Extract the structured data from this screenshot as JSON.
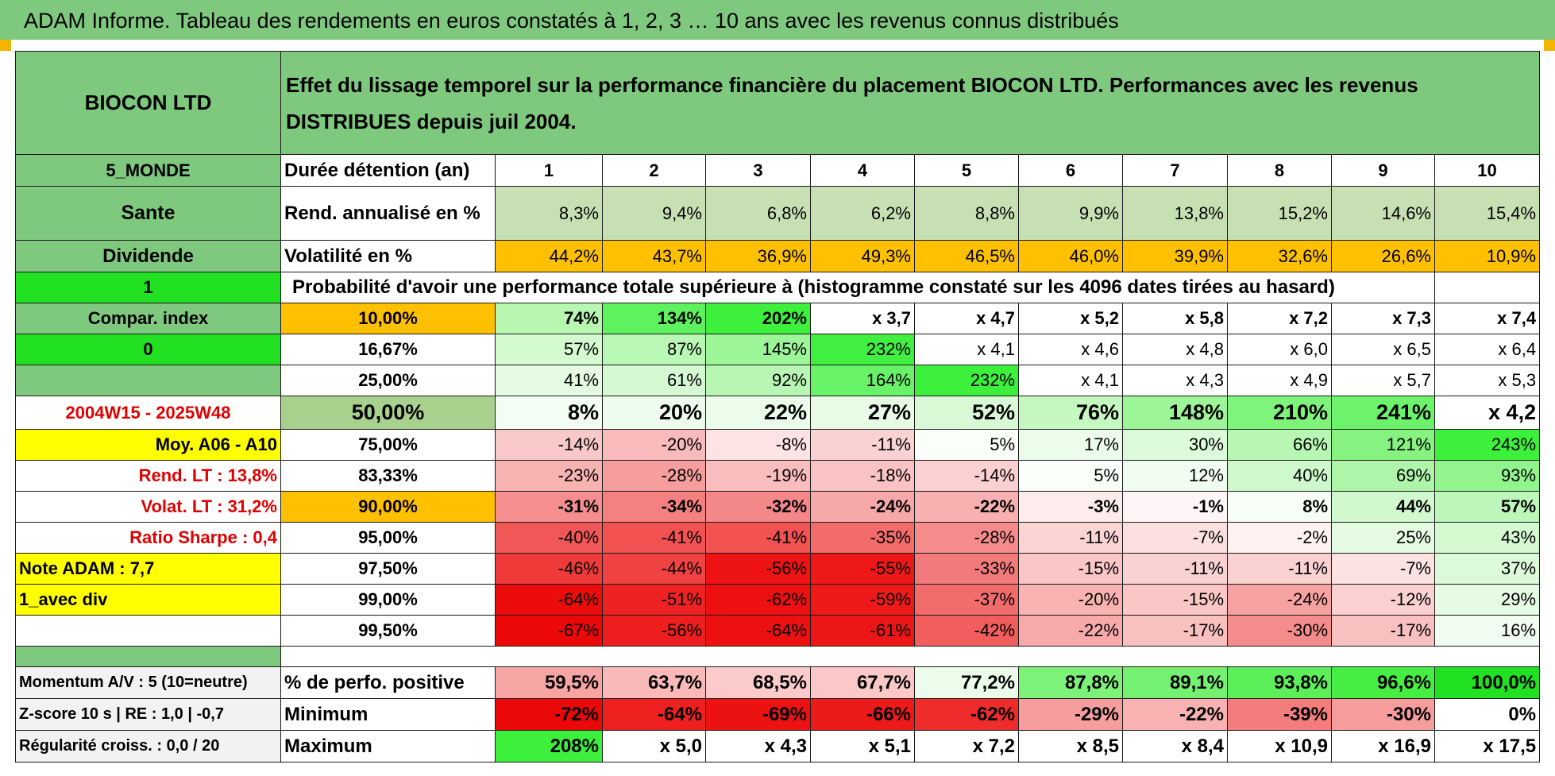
{
  "title": "ADAM Informe. Tableau des rendements en euros constatés à 1, 2, 3 … 10 ans avec les revenus connus distribués",
  "header": {
    "fund_name": "BIOCON LTD",
    "description": "Effet du lissage temporel sur la performance financière du placement BIOCON LTD. Performances avec les revenus DISTRIBUES depuis juil 2004."
  },
  "left_labels": {
    "region": "5_MONDE",
    "sector": "Sante",
    "income": "Dividende",
    "flag1": "1",
    "compar": "Compar. index",
    "flag2": "0",
    "empty": "",
    "period": "2004W15 - 2025W48",
    "moy": "Moy. A06 - A10",
    "rend_lt": "Rend. LT :    13,8%",
    "volat_lt": "Volat. LT :    31,2%",
    "sharpe": "Ratio Sharpe :     0,4",
    "note": "Note ADAM : 7,7",
    "avec_div": "1_avec div",
    "momentum": "Momentum A/V : 5 (10=neutre)",
    "zscore": "Z-score 10 s | RE : 1,0 | -0,7",
    "regularite": "Régularité croiss. : 0,0 / 20"
  },
  "rows": {
    "duree_label": "Durée détention (an)",
    "years": [
      "1",
      "2",
      "3",
      "4",
      "5",
      "6",
      "7",
      "8",
      "9",
      "10"
    ],
    "rend_label": "Rend. annualisé en %",
    "rend": [
      "8,3%",
      "9,4%",
      "6,8%",
      "6,2%",
      "8,8%",
      "9,9%",
      "13,8%",
      "15,2%",
      "14,6%",
      "15,4%"
    ],
    "vol_label": "Volatilité en %",
    "vol": [
      "44,2%",
      "43,7%",
      "36,9%",
      "49,3%",
      "46,5%",
      "46,0%",
      "39,9%",
      "32,6%",
      "26,6%",
      "10,9%"
    ],
    "prob_label": "Probabilité d'avoir une performance totale supérieure à (histogramme constaté sur les 4096 dates tirées au hasard)"
  },
  "prob_rows": [
    {
      "pct": "10,00%",
      "vals": [
        "74%",
        "134%",
        "202%",
        "x 3,7",
        "x 4,7",
        "x 5,2",
        "x 5,8",
        "x 7,2",
        "x 7,3",
        "x 7,4"
      ]
    },
    {
      "pct": "16,67%",
      "vals": [
        "57%",
        "87%",
        "145%",
        "232%",
        "x 4,1",
        "x 4,6",
        "x 4,8",
        "x 6,0",
        "x 6,5",
        "x 6,4"
      ]
    },
    {
      "pct": "25,00%",
      "vals": [
        "41%",
        "61%",
        "92%",
        "164%",
        "232%",
        "x 4,1",
        "x 4,3",
        "x 4,9",
        "x 5,7",
        "x 5,3"
      ]
    },
    {
      "pct": "50,00%",
      "vals": [
        "8%",
        "20%",
        "22%",
        "27%",
        "52%",
        "76%",
        "148%",
        "210%",
        "241%",
        "x 4,2"
      ]
    },
    {
      "pct": "75,00%",
      "vals": [
        "-14%",
        "-20%",
        "-8%",
        "-11%",
        "5%",
        "17%",
        "30%",
        "66%",
        "121%",
        "243%"
      ]
    },
    {
      "pct": "83,33%",
      "vals": [
        "-23%",
        "-28%",
        "-19%",
        "-18%",
        "-14%",
        "5%",
        "12%",
        "40%",
        "69%",
        "93%"
      ]
    },
    {
      "pct": "90,00%",
      "vals": [
        "-31%",
        "-34%",
        "-32%",
        "-24%",
        "-22%",
        "-3%",
        "-1%",
        "8%",
        "44%",
        "57%"
      ]
    },
    {
      "pct": "95,00%",
      "vals": [
        "-40%",
        "-41%",
        "-41%",
        "-35%",
        "-28%",
        "-11%",
        "-7%",
        "-2%",
        "25%",
        "43%"
      ]
    },
    {
      "pct": "97,50%",
      "vals": [
        "-46%",
        "-44%",
        "-56%",
        "-55%",
        "-33%",
        "-15%",
        "-11%",
        "-11%",
        "-7%",
        "37%"
      ]
    },
    {
      "pct": "99,00%",
      "vals": [
        "-64%",
        "-51%",
        "-62%",
        "-59%",
        "-37%",
        "-20%",
        "-15%",
        "-24%",
        "-12%",
        "29%"
      ]
    },
    {
      "pct": "99,50%",
      "vals": [
        "-67%",
        "-56%",
        "-64%",
        "-61%",
        "-42%",
        "-22%",
        "-17%",
        "-30%",
        "-17%",
        "16%"
      ]
    }
  ],
  "bottom": {
    "pos_label": "% de perfo. positive",
    "pos": [
      "59,5%",
      "63,7%",
      "68,5%",
      "67,7%",
      "77,2%",
      "87,8%",
      "89,1%",
      "93,8%",
      "96,6%",
      "100,0%"
    ],
    "min_label": "Minimum",
    "min": [
      "-72%",
      "-64%",
      "-69%",
      "-66%",
      "-62%",
      "-29%",
      "-22%",
      "-39%",
      "-30%",
      "0%"
    ],
    "max_label": "Maximum",
    "max": [
      "208%",
      "x 5,0",
      "x 4,3",
      "x 5,1",
      "x 7,2",
      "x 8,5",
      "x 8,4",
      "x 10,9",
      "x 16,9",
      "x 17,5"
    ]
  },
  "colors": {
    "header_green": "#7fc97f",
    "bright_green": "#22e022",
    "yellow": "#ffff00",
    "orange": "#ffc000",
    "light_green": "#c6e0b4",
    "label_red": "#e00000"
  },
  "cell_colors": {
    "prob": [
      [
        "#b7f7b0",
        "#5ef25e",
        "#3cf03c",
        "#ffffff",
        "#ffffff",
        "#ffffff",
        "#ffffff",
        "#ffffff",
        "#ffffff",
        "#ffffff"
      ],
      [
        "#d4fad0",
        "#b9f7b4",
        "#9cf597",
        "#40ef40",
        "#ffffff",
        "#ffffff",
        "#ffffff",
        "#ffffff",
        "#ffffff",
        "#ffffff"
      ],
      [
        "#e4fbe1",
        "#d5f9d2",
        "#b7f6b3",
        "#67f267",
        "#3cf03c",
        "#ffffff",
        "#ffffff",
        "#ffffff",
        "#ffffff",
        "#ffffff"
      ],
      [
        "#f4fdf3",
        "#eefced",
        "#ebfcea",
        "#e7fbe5",
        "#d9f9d6",
        "#c5f7c1",
        "#9cf597",
        "#7ef57a",
        "#6df36b",
        "#ffffff"
      ],
      [
        "#f9c8c8",
        "#f8baba",
        "#fde3e3",
        "#fbd2d2",
        "#fafffa",
        "#ecfceb",
        "#dcfad9",
        "#b7f6b3",
        "#86f380",
        "#3cf03c"
      ],
      [
        "#f7b2b2",
        "#f69e9e",
        "#f9bdbd",
        "#f9c3c3",
        "#fbd0d0",
        "#fafffa",
        "#f0fcef",
        "#cff8cc",
        "#aef5a9",
        "#92f48d"
      ],
      [
        "#f58e8e",
        "#f48080",
        "#f48787",
        "#f7a8a8",
        "#f8b0b0",
        "#fdecec",
        "#fef6f6",
        "#f6fef5",
        "#d2f8cf",
        "#bdf6b9"
      ],
      [
        "#f25757",
        "#f25252",
        "#f25252",
        "#f36b6b",
        "#f58b8b",
        "#fbd4d4",
        "#fce0e0",
        "#fef1f1",
        "#e4fbe1",
        "#d4f9d1"
      ],
      [
        "#f03a3a",
        "#f04242",
        "#ee1414",
        "#ee1818",
        "#f37a7a",
        "#fac6c6",
        "#fbd2d2",
        "#fbd2d2",
        "#fde2e2",
        "#dcfad9"
      ],
      [
        "#ec0c0c",
        "#ee2222",
        "#ec1010",
        "#ee1a1a",
        "#f36c6c",
        "#f8b2b2",
        "#fac6c6",
        "#f7a2a2",
        "#fbd0d0",
        "#e6fbe4"
      ],
      [
        "#eb0808",
        "#ee1e1e",
        "#ec1010",
        "#ed1616",
        "#f25e5e",
        "#f8aaaa",
        "#f9c0c0",
        "#f58c8c",
        "#f9c0c0",
        "#f1fdf0"
      ]
    ],
    "rend": [
      "#c6e0b4",
      "#c6e0b4",
      "#c6e0b4",
      "#c6e0b4",
      "#c6e0b4",
      "#c6e0b4",
      "#c6e0b4",
      "#c6e0b4",
      "#c6e0b4",
      "#c6e0b4"
    ],
    "vol": [
      "#ffc000",
      "#ffc000",
      "#ffc000",
      "#ffc000",
      "#ffc000",
      "#ffc000",
      "#ffc000",
      "#ffc000",
      "#ffc000",
      "#ffc000"
    ],
    "pos": [
      "#f6a4a4",
      "#f9b9b9",
      "#fbcaca",
      "#fbc8c8",
      "#ecfceb",
      "#7cf278",
      "#74f170",
      "#5def5a",
      "#46ee44",
      "#22e022"
    ],
    "min": [
      "#eb0808",
      "#ee2020",
      "#ec1212",
      "#ed1a1a",
      "#ef2c2c",
      "#f69e9e",
      "#f8b2b2",
      "#f37c7c",
      "#f59c9c",
      "#ffffff"
    ],
    "max": [
      "#3cf03c",
      "#ffffff",
      "#ffffff",
      "#ffffff",
      "#ffffff",
      "#ffffff",
      "#ffffff",
      "#ffffff",
      "#ffffff",
      "#ffffff"
    ]
  }
}
